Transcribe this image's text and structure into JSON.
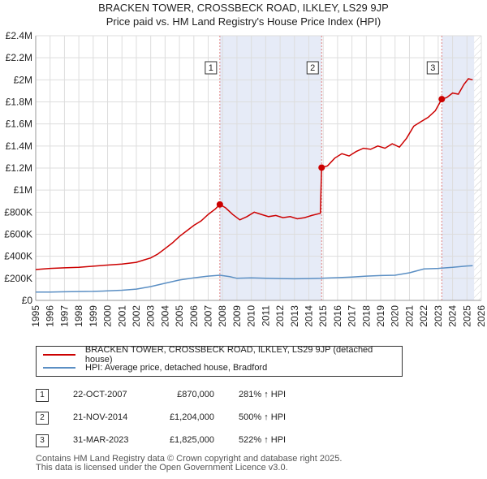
{
  "header": {
    "title_line1": "BRACKEN TOWER, CROSSBECK ROAD, ILKLEY, LS29 9JP",
    "title_line2": "Price paid vs. HM Land Registry's House Price Index (HPI)"
  },
  "chart_data": {
    "type": "line",
    "xlim": [
      1995,
      2026
    ],
    "ylim": [
      0,
      2400000
    ],
    "x_ticks": [
      "1995",
      "1996",
      "1997",
      "1998",
      "1999",
      "2000",
      "2001",
      "2002",
      "2003",
      "2004",
      "2005",
      "2006",
      "2007",
      "2008",
      "2009",
      "2010",
      "2011",
      "2012",
      "2013",
      "2014",
      "2015",
      "2016",
      "2017",
      "2018",
      "2019",
      "2020",
      "2021",
      "2022",
      "2023",
      "2024",
      "2025",
      "2026"
    ],
    "y_ticks": [
      {
        "value": 0,
        "label": "£0"
      },
      {
        "value": 200000,
        "label": "£200K"
      },
      {
        "value": 400000,
        "label": "£400K"
      },
      {
        "value": 600000,
        "label": "£600K"
      },
      {
        "value": 800000,
        "label": "£800K"
      },
      {
        "value": 1000000,
        "label": "£1M"
      },
      {
        "value": 1200000,
        "label": "£1.2M"
      },
      {
        "value": 1400000,
        "label": "£1.4M"
      },
      {
        "value": 1600000,
        "label": "£1.6M"
      },
      {
        "value": 1800000,
        "label": "£1.8M"
      },
      {
        "value": 2000000,
        "label": "£2M"
      },
      {
        "value": 2200000,
        "label": "£2.2M"
      },
      {
        "value": 2400000,
        "label": "£2.4M"
      }
    ],
    "shaded_periods": [
      {
        "from": 2007.81,
        "to": 2014.89
      },
      {
        "from": 2023.25,
        "to": 2025.5
      }
    ],
    "future_hatch_from": 2025.5,
    "series": [
      {
        "name": "BRACKEN TOWER, CROSSBECK ROAD, ILKLEY, LS29 9JP (detached house)",
        "color": "#cc0000",
        "x": [
          1995,
          1996,
          1997,
          1998,
          1999,
          2000,
          2001,
          2002,
          2002.5,
          2003,
          2003.5,
          2004,
          2004.5,
          2005,
          2005.5,
          2006,
          2006.5,
          2007,
          2007.5,
          2007.81,
          2008.2,
          2008.7,
          2009.2,
          2009.7,
          2010.2,
          2010.7,
          2011.2,
          2011.7,
          2012.2,
          2012.7,
          2013.2,
          2013.7,
          2014.2,
          2014.8,
          2014.89,
          2015.3,
          2015.8,
          2016.3,
          2016.8,
          2017.3,
          2017.8,
          2018.3,
          2018.8,
          2019.3,
          2019.8,
          2020.3,
          2020.8,
          2021.3,
          2021.8,
          2022.3,
          2022.8,
          2023.25,
          2023.6,
          2024.0,
          2024.4,
          2024.8,
          2025.1,
          2025.4
        ],
        "values": [
          280000,
          290000,
          295000,
          300000,
          310000,
          320000,
          330000,
          345000,
          365000,
          385000,
          420000,
          470000,
          520000,
          580000,
          630000,
          680000,
          720000,
          780000,
          830000,
          870000,
          840000,
          780000,
          730000,
          760000,
          800000,
          780000,
          760000,
          770000,
          750000,
          760000,
          740000,
          750000,
          770000,
          790000,
          1204000,
          1220000,
          1290000,
          1330000,
          1310000,
          1350000,
          1380000,
          1370000,
          1400000,
          1380000,
          1420000,
          1390000,
          1470000,
          1580000,
          1620000,
          1660000,
          1720000,
          1825000,
          1840000,
          1880000,
          1870000,
          1960000,
          2010000,
          2000000
        ]
      },
      {
        "name": "HPI: Average price, detached house, Bradford",
        "color": "#5b8fc4",
        "x": [
          1995,
          1996,
          1997,
          1998,
          1999,
          2000,
          2001,
          2002,
          2003,
          2004,
          2005,
          2006,
          2007,
          2007.81,
          2008.5,
          2009,
          2010,
          2011,
          2012,
          2013,
          2014,
          2014.89,
          2015,
          2016,
          2017,
          2018,
          2019,
          2020,
          2021,
          2022,
          2023,
          2023.25,
          2024,
          2025,
          2025.4
        ],
        "values": [
          75000,
          76000,
          78000,
          80000,
          82000,
          86000,
          92000,
          102000,
          125000,
          155000,
          185000,
          205000,
          220000,
          228000,
          215000,
          200000,
          205000,
          200000,
          198000,
          196000,
          198000,
          200000,
          202000,
          206000,
          212000,
          220000,
          225000,
          228000,
          250000,
          285000,
          290000,
          293000,
          300000,
          312000,
          315000
        ]
      }
    ],
    "sales": [
      {
        "label": "1",
        "x": 2007.81,
        "value": 870000
      },
      {
        "label": "2",
        "x": 2014.89,
        "value": 1204000
      },
      {
        "label": "3",
        "x": 2023.25,
        "value": 1825000
      }
    ]
  },
  "legend": {
    "property_label": "BRACKEN TOWER, CROSSBECK ROAD, ILKLEY, LS29 9JP (detached house)",
    "hpi_label": "HPI: Average price, detached house, Bradford",
    "property_color": "#cc0000",
    "hpi_color": "#5b8fc4"
  },
  "transactions": [
    {
      "num": "1",
      "date": "22-OCT-2007",
      "price": "£870,000",
      "hpi": "281% ↑ HPI"
    },
    {
      "num": "2",
      "date": "21-NOV-2014",
      "price": "£1,204,000",
      "hpi": "500% ↑ HPI"
    },
    {
      "num": "3",
      "date": "31-MAR-2023",
      "price": "£1,825,000",
      "hpi": "522% ↑ HPI"
    }
  ],
  "footer": {
    "line1": "Contains HM Land Registry data © Crown copyright and database right 2025.",
    "line2": "This data is licensed under the Open Government Licence v3.0."
  }
}
